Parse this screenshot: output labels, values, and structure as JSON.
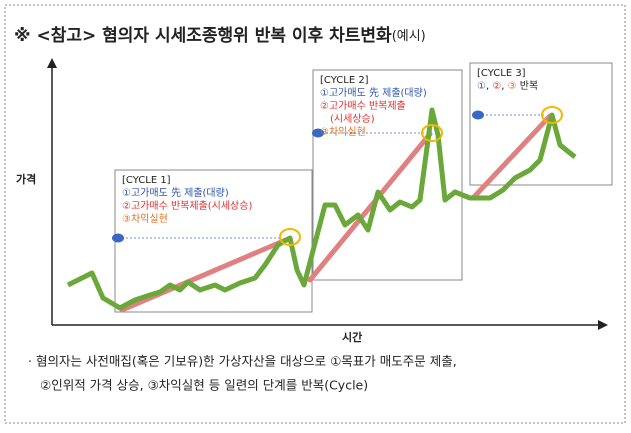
{
  "header": {
    "title": "※ <참고> 혐의자 시세조종행위 반복 이후 차트변화",
    "title_suffix": "(예시)"
  },
  "axes": {
    "y_label": "가격",
    "x_label": "시간"
  },
  "cycles": [
    {
      "label": "[CYCLE 1]",
      "lines": [
        "①고가매도 先 제출(대량)",
        "②고가매수 반복제출(시세상승)",
        "③차익실현"
      ]
    },
    {
      "label": "[CYCLE 2]",
      "lines": [
        "①고가매도 先 제출(대량)",
        "②고가매수 반복제출",
        "(시세상승)",
        "③차익실현"
      ]
    },
    {
      "label": "[CYCLE 3]",
      "lines": [
        "①",
        ", ",
        "②",
        ", ",
        "③",
        " 반복"
      ]
    }
  ],
  "note": {
    "lines": [
      "· 혐의자는 사전매집(혹은 기보유)한 가상자산을 대상으로 ①목표가 매도주문 제출,",
      "②인위적 가격 상승, ③차익실현 등 일련의 단계를 반복(Cycle)"
    ]
  }
}
